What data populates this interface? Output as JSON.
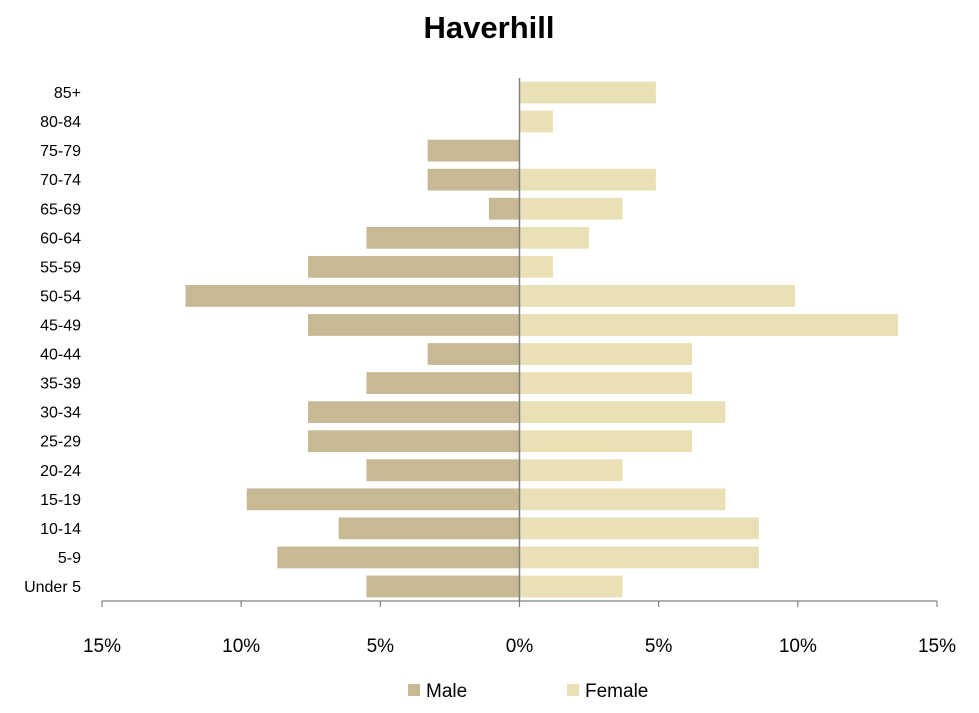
{
  "chart_data": {
    "type": "bar",
    "orientation": "horizontal",
    "title": "Haverhill",
    "xlabel": "",
    "ylabel": "",
    "xlim": [
      -15,
      15
    ],
    "x_ticks": [
      -15,
      -10,
      -5,
      0,
      5,
      10,
      15
    ],
    "x_tick_labels": [
      "15%",
      "10%",
      "5%",
      "0%",
      "5%",
      "10%",
      "15%"
    ],
    "categories": [
      "Under 5",
      "5-9",
      "10-14",
      "15-19",
      "20-24",
      "25-29",
      "30-34",
      "35-39",
      "40-44",
      "45-49",
      "50-54",
      "55-59",
      "60-64",
      "65-69",
      "70-74",
      "75-79",
      "80-84",
      "85+"
    ],
    "series": [
      {
        "name": "Male",
        "color": "#c6b994",
        "values": [
          5.5,
          8.7,
          6.5,
          9.8,
          5.5,
          7.6,
          7.6,
          5.5,
          3.3,
          7.6,
          12.0,
          7.6,
          5.5,
          1.1,
          3.3,
          3.3,
          0,
          0
        ]
      },
      {
        "name": "Female",
        "color": "#e9e0b5",
        "values": [
          3.7,
          8.6,
          8.6,
          7.4,
          3.7,
          6.2,
          7.4,
          6.2,
          6.2,
          13.6,
          9.9,
          1.2,
          2.5,
          3.7,
          4.9,
          0,
          1.2,
          4.9
        ]
      }
    ],
    "grid": false,
    "legend_position": "bottom"
  }
}
